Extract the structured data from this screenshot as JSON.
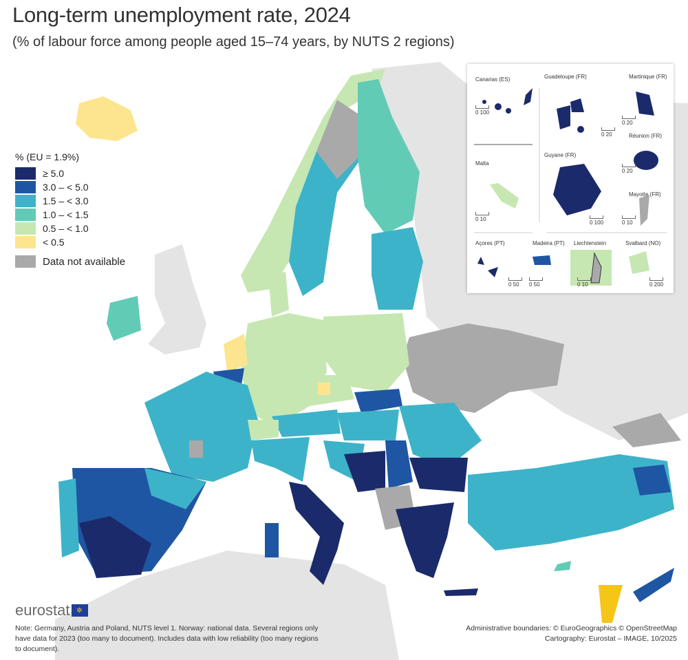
{
  "title": "Long-term unemployment rate, 2024",
  "subtitle": "(% of labour force among people aged 15–74 years, by NUTS 2 regions)",
  "legend": {
    "title": "% (EU = 1.9%)",
    "classes": [
      {
        "label": "≥ 5.0",
        "color": "#1b2a6b"
      },
      {
        "label": "3.0 – < 5.0",
        "color": "#1f56a3"
      },
      {
        "label": "1.5 – < 3.0",
        "color": "#3db3c9"
      },
      {
        "label": "1.0 – < 1.5",
        "color": "#62cbb5"
      },
      {
        "label": "0.5 – < 1.0",
        "color": "#c6e7b2"
      },
      {
        "label": "< 0.5",
        "color": "#fde58f"
      }
    ],
    "na": {
      "label": "Data not available",
      "color": "#a9a9a9"
    }
  },
  "insets": [
    {
      "name": "Canarias (ES)",
      "scale": "0  100"
    },
    {
      "name": "Guadeloupe (FR)",
      "scale": "0  20"
    },
    {
      "name": "Martinique (FR)",
      "scale": "0  20"
    },
    {
      "name": "Réunion (FR)",
      "scale": "0  20"
    },
    {
      "name": "Malta",
      "scale": "0  10"
    },
    {
      "name": "Guyane (FR)",
      "scale": "0  100"
    },
    {
      "name": "Mayotte (FR)",
      "scale": "0 10"
    },
    {
      "name": "Açores (PT)",
      "scale": "0  50"
    },
    {
      "name": "Madeira (PT)",
      "scale": "0  50"
    },
    {
      "name": "Liechtenstein",
      "scale": "0  10"
    },
    {
      "name": "Svalbard (NO)",
      "scale": "0  200"
    }
  ],
  "logo": "eurostat",
  "note": "Note: Germany, Austria and Poland, NUTS level 1. Norway: national data. Several regions only have data for 2023 (too many to document). Includes data with low reliability (too many regions to document).",
  "credits": {
    "line1": "Administrative boundaries: © EuroGeographics © OpenStreetMap",
    "line2": "Cartography: Eurostat – IMAGE, 10/2025"
  }
}
